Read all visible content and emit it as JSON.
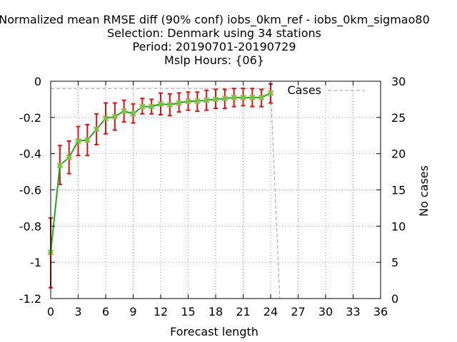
{
  "chart_data": {
    "type": "line",
    "title_lines": [
      "Normalized mean RMSE diff (90% conf) iobs_0km_ref - iobs_0km_sigmao80",
      "Selection: Denmark using    34 stations",
      "Period: 20190701-20190729",
      "Mslp   Hours: {06}"
    ],
    "xlabel": "Forecast length",
    "ylabel": "",
    "y2label": "No cases",
    "xlim": [
      0,
      36
    ],
    "ylim": [
      -1.2,
      0
    ],
    "y2lim": [
      0,
      30
    ],
    "xticks": [
      0,
      3,
      6,
      9,
      12,
      15,
      18,
      21,
      24,
      27,
      30,
      33,
      36
    ],
    "yticks": [
      0,
      -0.2,
      -0.4,
      -0.6,
      -0.8,
      -1,
      -1.2
    ],
    "ytick_labels": [
      "0",
      "-0.2",
      "-0.4",
      "-0.6",
      "-0.8",
      "-1",
      "-1.2"
    ],
    "y2ticks": [
      0,
      5,
      10,
      15,
      20,
      25,
      30
    ],
    "grid": true,
    "legend_position": "top-right",
    "legend_entries": [
      "Cases"
    ],
    "series": [
      {
        "x": [
          0,
          1,
          2,
          3,
          4,
          5,
          6,
          7,
          8,
          9,
          10,
          11,
          12,
          13,
          14,
          15,
          16,
          17,
          18,
          19,
          20,
          21,
          22,
          23,
          24
        ],
        "y": [
          -0.945,
          -0.465,
          -0.42,
          -0.33,
          -0.325,
          -0.265,
          -0.205,
          -0.195,
          -0.165,
          -0.18,
          -0.14,
          -0.14,
          -0.125,
          -0.13,
          -0.12,
          -0.11,
          -0.11,
          -0.105,
          -0.1,
          -0.095,
          -0.09,
          -0.09,
          -0.09,
          -0.09,
          -0.065
        ],
        "err_low": [
          -1.14,
          -0.57,
          -0.51,
          -0.41,
          -0.41,
          -0.35,
          -0.29,
          -0.27,
          -0.225,
          -0.23,
          -0.18,
          -0.18,
          -0.185,
          -0.19,
          -0.17,
          -0.16,
          -0.165,
          -0.16,
          -0.15,
          -0.15,
          -0.14,
          -0.135,
          -0.14,
          -0.14,
          -0.12
        ],
        "err_high": [
          -0.755,
          -0.355,
          -0.33,
          -0.25,
          -0.24,
          -0.18,
          -0.12,
          -0.12,
          -0.105,
          -0.125,
          -0.095,
          -0.1,
          -0.065,
          -0.07,
          -0.065,
          -0.06,
          -0.06,
          -0.05,
          -0.045,
          -0.045,
          -0.04,
          -0.04,
          -0.04,
          -0.045,
          -0.015
        ],
        "color": "#1aab1a",
        "err_color": "#e01010",
        "marker_color": "#7fbf3f"
      },
      {
        "name": "Cases",
        "axis": "y2",
        "x": [
          0,
          1,
          2,
          3,
          4,
          5,
          6,
          7,
          8,
          9,
          10,
          11,
          12,
          13,
          14,
          15,
          16,
          17,
          18,
          19,
          20,
          21,
          22,
          23,
          24,
          25,
          26,
          27,
          28,
          29,
          30,
          31,
          32,
          33,
          34,
          35,
          36
        ],
        "y": [
          29,
          29,
          29,
          29,
          29,
          29,
          29,
          29,
          29,
          29,
          29,
          29,
          29,
          29,
          29,
          29,
          29,
          29,
          29,
          29,
          29,
          29,
          29,
          29,
          29,
          0,
          0,
          0,
          0,
          0,
          0,
          0,
          0,
          0,
          0,
          0,
          0
        ],
        "color": "#a0a0a0",
        "dashed": true
      }
    ]
  }
}
